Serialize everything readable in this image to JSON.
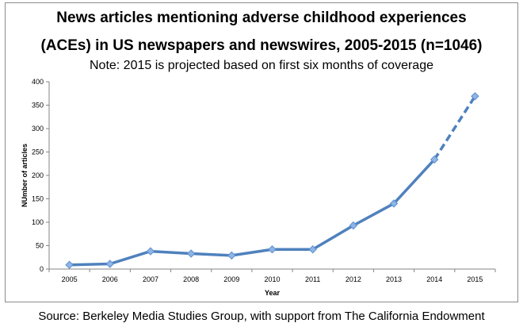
{
  "chart_data": {
    "type": "line",
    "title_line1": "News articles mentioning adverse childhood experiences",
    "title_line2": "(ACEs) in US newspapers and newswires, 2005-2015 (n=1046)",
    "subtitle": "Note: 2015 is projected based on first six months of coverage",
    "xlabel": "Year",
    "ylabel": "NUmber of articles",
    "categories": [
      "2005",
      "2006",
      "2007",
      "2008",
      "2009",
      "2010",
      "2011",
      "2012",
      "2013",
      "2014",
      "2015"
    ],
    "series": [
      {
        "values": [
          9,
          11,
          38,
          33,
          29,
          42,
          42,
          93,
          140,
          234,
          369
        ],
        "projected_from_index": 9
      }
    ],
    "ylim": [
      0,
      400
    ],
    "yticks": [
      0,
      50,
      100,
      150,
      200,
      250,
      300,
      350,
      400
    ],
    "grid": false,
    "legend": "none",
    "colors": {
      "line": "#4f81bd",
      "marker": "#8fb5e6",
      "marker_edge": "#5b8fd0"
    }
  },
  "source_note": "Source: Berkeley Media Studies Group, with support from The California Endowment"
}
